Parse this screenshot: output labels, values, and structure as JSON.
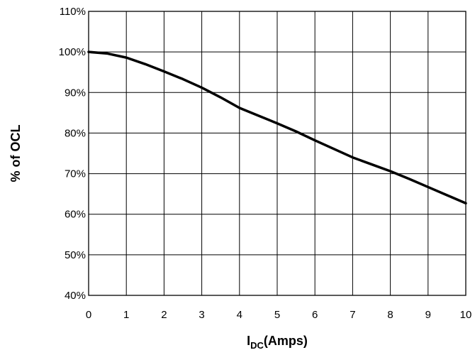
{
  "chart_data": {
    "type": "line",
    "title": "",
    "xlabel_main": "I",
    "xlabel_sub": "DC",
    "xlabel_rest": "(Amps)",
    "ylabel": "% of OCL",
    "xlim": [
      0,
      10
    ],
    "ylim": [
      40,
      110
    ],
    "grid": true,
    "legend": "none",
    "x_ticks": [
      "0",
      "1",
      "2",
      "3",
      "4",
      "5",
      "6",
      "7",
      "8",
      "9",
      "10"
    ],
    "y_ticks": [
      "40%",
      "50%",
      "60%",
      "70%",
      "80%",
      "90%",
      "100%",
      "110%"
    ],
    "series": [
      {
        "color": "#000000",
        "x": [
          0,
          0.5,
          1,
          1.5,
          2,
          2.5,
          3,
          3.5,
          4,
          4.5,
          5,
          5.5,
          6,
          6.5,
          7,
          7.5,
          8,
          8.5,
          9,
          9.5,
          10
        ],
        "y": [
          100,
          99.6,
          98.6,
          97,
          95.2,
          93.3,
          91.2,
          88.8,
          86.2,
          84.3,
          82.4,
          80.4,
          78.2,
          76.1,
          74.0,
          72.3,
          70.6,
          68.7,
          66.7,
          64.7,
          62.7
        ]
      }
    ]
  }
}
